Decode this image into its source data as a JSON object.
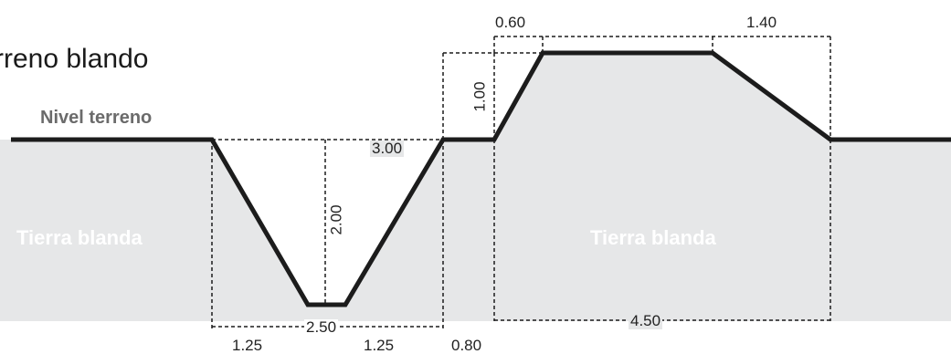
{
  "title": "rreno blando",
  "ground_label": "Nivel terreno",
  "soil_labels": [
    "Tierra blanda",
    "Tierra blanda"
  ],
  "dimensions": {
    "trench_top_width": "3.00",
    "trench_depth": "2.00",
    "trench_bottom_width": "2.50",
    "trench_left_slope": "1.25",
    "trench_right_slope": "1.25",
    "berm_gap": "0.80",
    "mound_left_slope": "0.60",
    "mound_right_slope": "1.40",
    "mound_height": "1.00",
    "mound_base_width": "4.50"
  },
  "colors": {
    "soil_fill": "#e6e7e8",
    "profile_line": "#1c1c1c",
    "dim_line": "#1c1c1c",
    "ground_label": "#6b6b6b"
  }
}
